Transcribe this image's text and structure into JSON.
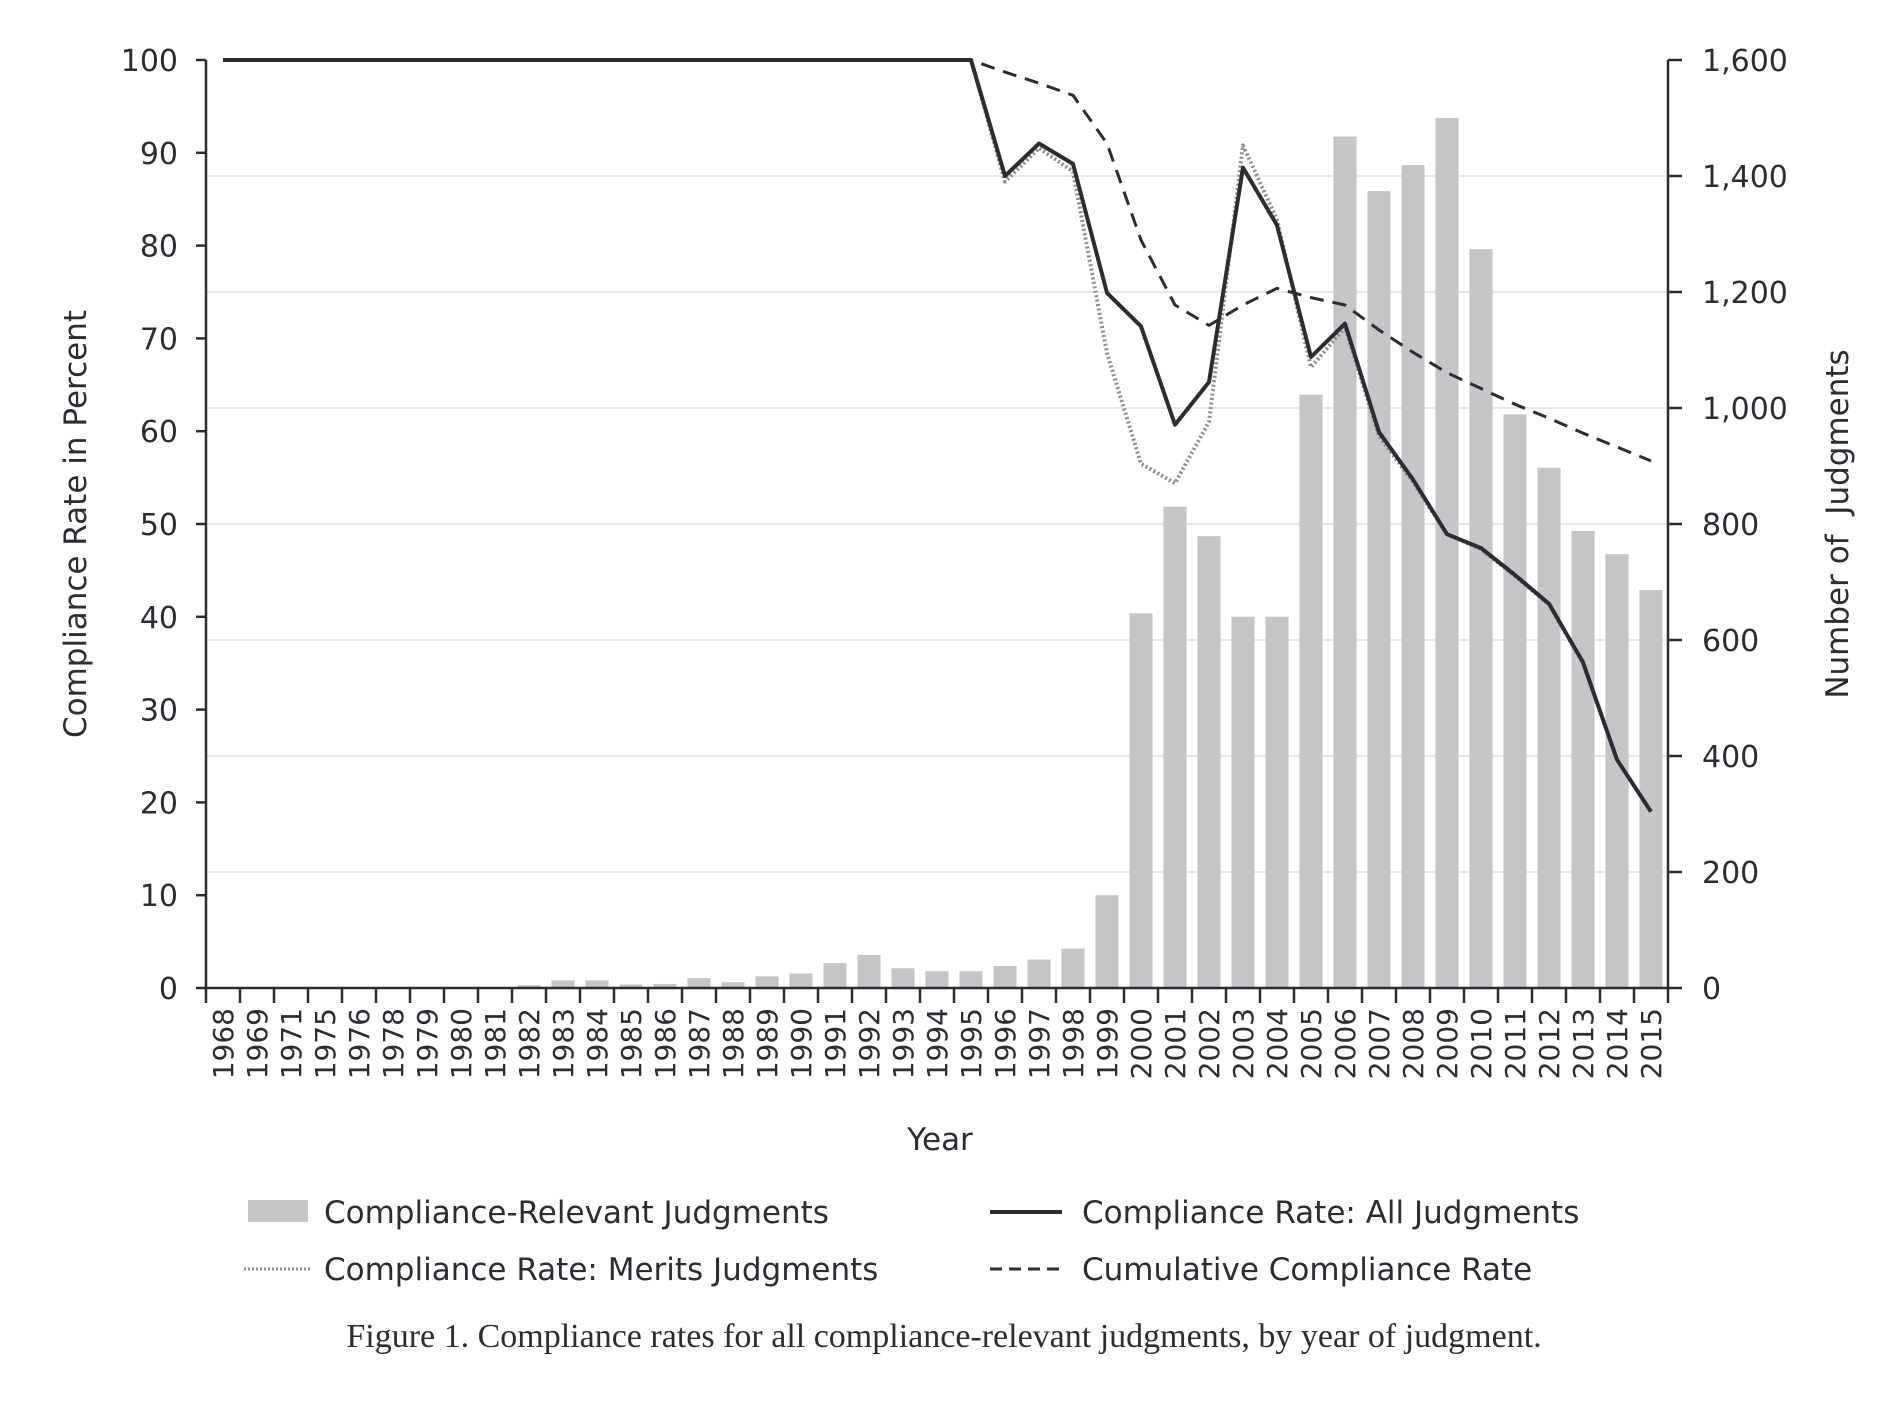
{
  "caption": "Figure 1. Compliance rates for all compliance-relevant judgments, by year of judgment.",
  "colors": {
    "bar": "#c4c5c7",
    "all_line": "#2b2d33",
    "merits_line": "#8a8b8e",
    "cumulative_line": "#2b2d33",
    "grid": "#e8e8e8",
    "axis": "#2b2d33"
  },
  "chart_data": {
    "type": "bar",
    "title": "",
    "xlabel": "Year",
    "ylabel": "Compliance Rate in Percent",
    "y2label": "Number of  Judgments",
    "ylim": [
      0,
      100
    ],
    "y2lim": [
      0,
      1600
    ],
    "yticks": [
      0,
      10,
      20,
      30,
      40,
      50,
      60,
      70,
      80,
      90,
      100
    ],
    "y2ticks": [
      0,
      200,
      400,
      600,
      800,
      1000,
      1200,
      1400,
      1600
    ],
    "y2tick_labels": [
      "0",
      "200",
      "400",
      "600",
      "800",
      "1,000",
      "1,200",
      "1,400",
      "1,600"
    ],
    "grid": "horizontal, at right-axis ticks",
    "legend_position": "bottom",
    "categories": [
      "1968",
      "1969",
      "1971",
      "1975",
      "1976",
      "1978",
      "1979",
      "1980",
      "1981",
      "1982",
      "1983",
      "1984",
      "1985",
      "1986",
      "1987",
      "1988",
      "1989",
      "1990",
      "1991",
      "1992",
      "1993",
      "1994",
      "1995",
      "1996",
      "1997",
      "1998",
      "1999",
      "2000",
      "2001",
      "2002",
      "2003",
      "2004",
      "2005",
      "2006",
      "2007",
      "2008",
      "2009",
      "2010",
      "2011",
      "2012",
      "2013",
      "2014",
      "2015"
    ],
    "series": [
      {
        "name": "Compliance-Relevant Judgments",
        "type": "bar",
        "axis": "right",
        "values": [
          1,
          1,
          1,
          1,
          1,
          1,
          1,
          1,
          1,
          5,
          13,
          13,
          6,
          7,
          17,
          10,
          20,
          25,
          43,
          57,
          34,
          29,
          29,
          38,
          49,
          68,
          160,
          646,
          830,
          779,
          640,
          640,
          1023,
          1468,
          1374,
          1419,
          1500,
          1274,
          989,
          897,
          788,
          748,
          686
        ]
      },
      {
        "name": "Compliance Rate: All Judgments",
        "type": "line",
        "style": "solid",
        "axis": "left",
        "values": [
          100,
          100,
          100,
          100,
          100,
          100,
          100,
          100,
          100,
          100,
          100,
          100,
          100,
          100,
          100,
          100,
          100,
          100,
          100,
          100,
          100,
          100,
          100,
          87.5,
          91.0,
          88.8,
          74.9,
          71.3,
          60.7,
          65.3,
          88.4,
          82.2,
          68.0,
          71.6,
          59.9,
          54.8,
          48.9,
          47.4,
          44.5,
          41.4,
          35.1,
          24.6,
          19.0
        ]
      },
      {
        "name": "Compliance Rate: Merits Judgments",
        "type": "line",
        "style": "dotted",
        "axis": "left",
        "values": [
          100,
          100,
          100,
          100,
          100,
          100,
          100,
          100,
          100,
          100,
          100,
          100,
          100,
          100,
          100,
          100,
          100,
          100,
          100,
          100,
          100,
          100,
          100,
          86.9,
          90.5,
          88.0,
          68.4,
          56.5,
          54.4,
          61.0,
          90.8,
          82.8,
          66.9,
          71.2,
          59.5,
          54.5,
          48.9,
          47.3,
          44.4,
          41.3,
          35.0,
          24.6,
          19.0
        ]
      },
      {
        "name": "Cumulative Compliance Rate",
        "type": "line",
        "style": "dashed",
        "axis": "left",
        "values": [
          100,
          100,
          100,
          100,
          100,
          100,
          100,
          100,
          100,
          100,
          100,
          100,
          100,
          100,
          100,
          100,
          100,
          100,
          100,
          100,
          100,
          100,
          100,
          98.7,
          97.5,
          96.2,
          91.0,
          80.6,
          73.6,
          71.4,
          73.6,
          75.4,
          74.4,
          73.6,
          70.9,
          68.5,
          66.3,
          64.6,
          62.9,
          61.4,
          59.8,
          58.3,
          56.8
        ]
      }
    ],
    "legend": [
      {
        "label": "Compliance-Relevant Judgments",
        "symbol": "bar"
      },
      {
        "label": "Compliance Rate: All Judgments",
        "symbol": "solid"
      },
      {
        "label": "Compliance Rate: Merits Judgments",
        "symbol": "dotted"
      },
      {
        "label": "Cumulative Compliance Rate",
        "symbol": "dashed"
      }
    ]
  }
}
